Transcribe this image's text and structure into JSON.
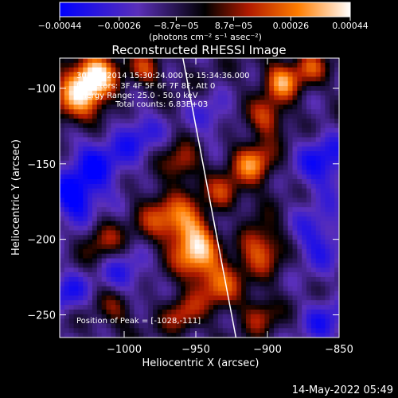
{
  "chart_data": {
    "type": "heatmap",
    "title": "Reconstructed RHESSI Image",
    "xlabel": "Heliocentric X (arcsec)",
    "ylabel": "Heliocentric Y (arcsec)",
    "xlim": [
      -1045,
      -850
    ],
    "ylim": [
      -265,
      -80
    ],
    "x_ticks": [
      -1000,
      -950,
      -900,
      -850
    ],
    "x_tick_labels": [
      "−1000",
      "−950",
      "−900",
      "−850"
    ],
    "y_ticks": [
      -100,
      -150,
      -200,
      -250
    ],
    "y_tick_labels": [
      "−100",
      "−150",
      "−200",
      "−250"
    ],
    "colorbar": {
      "ticks": [
        -0.00044,
        -0.00026,
        -8.7e-05,
        8.7e-05,
        0.00026,
        0.00044
      ],
      "tick_labels": [
        "−0.00044",
        "−0.00026",
        "−8.7e−05",
        "8.7e−05",
        "0.00026",
        "0.00044"
      ],
      "units_line": "(photons cm⁻² s⁻¹ asec⁻²)",
      "colors": [
        "#0000ff",
        "#5a2fb8",
        "#000000",
        "#b11a00",
        "#ff7d00",
        "#ffffff"
      ]
    },
    "annotations": {
      "time_range": "30-Mar-2014 15:30:24.000 to 15:34:36.000",
      "detectors": "Detectors: 3F 4F 5F 6F 7F 8F, Att 0",
      "energy": "Energy Range: 25.0 - 50.0 keV",
      "counts": "Total counts: 6.83E+03",
      "peak": "Position of Peak = [-1028,-111]"
    },
    "limb_line": [
      [
        -959,
        -80
      ],
      [
        -922,
        -265
      ]
    ],
    "blobs": [
      {
        "x": -1030,
        "y": -105,
        "v": 1.0,
        "r": 14
      },
      {
        "x": -1020,
        "y": -90,
        "v": 0.9,
        "r": 10
      },
      {
        "x": -985,
        "y": -88,
        "v": 0.6,
        "r": 8
      },
      {
        "x": -960,
        "y": -150,
        "v": 0.6,
        "r": 9
      },
      {
        "x": -975,
        "y": -185,
        "v": 0.55,
        "r": 12
      },
      {
        "x": -955,
        "y": -190,
        "v": 0.75,
        "r": 11
      },
      {
        "x": -950,
        "y": -210,
        "v": 0.9,
        "r": 11
      },
      {
        "x": -930,
        "y": -170,
        "v": 0.6,
        "r": 9
      },
      {
        "x": -910,
        "y": -150,
        "v": 0.85,
        "r": 10
      },
      {
        "x": -900,
        "y": -120,
        "v": 0.65,
        "r": 9
      },
      {
        "x": -890,
        "y": -95,
        "v": 0.9,
        "r": 9
      },
      {
        "x": -870,
        "y": -85,
        "v": 0.6,
        "r": 8
      },
      {
        "x": -905,
        "y": -205,
        "v": 0.75,
        "r": 12
      },
      {
        "x": -935,
        "y": -230,
        "v": 0.7,
        "r": 12
      },
      {
        "x": -1015,
        "y": -200,
        "v": 0.5,
        "r": 10
      },
      {
        "x": -1005,
        "y": -245,
        "v": 0.45,
        "r": 10
      },
      {
        "x": -960,
        "y": -250,
        "v": 0.55,
        "r": 9
      },
      {
        "x": -905,
        "y": -250,
        "v": 0.5,
        "r": 9
      },
      {
        "x": -1020,
        "y": -150,
        "v": -0.6,
        "r": 16
      },
      {
        "x": -1035,
        "y": -175,
        "v": -0.7,
        "r": 12
      },
      {
        "x": -990,
        "y": -130,
        "v": -0.45,
        "r": 12
      },
      {
        "x": -860,
        "y": -150,
        "v": -0.65,
        "r": 14
      },
      {
        "x": -865,
        "y": -200,
        "v": -0.55,
        "r": 14
      },
      {
        "x": -860,
        "y": -255,
        "v": -0.5,
        "r": 12
      },
      {
        "x": -1000,
        "y": -225,
        "v": -0.5,
        "r": 12
      },
      {
        "x": -940,
        "y": -120,
        "v": -0.4,
        "r": 10
      },
      {
        "x": -1040,
        "y": -235,
        "v": -0.55,
        "r": 10
      },
      {
        "x": -925,
        "y": -190,
        "v": -0.35,
        "r": 8
      }
    ]
  },
  "footer": {
    "date": "14-May-2022 05:49"
  }
}
